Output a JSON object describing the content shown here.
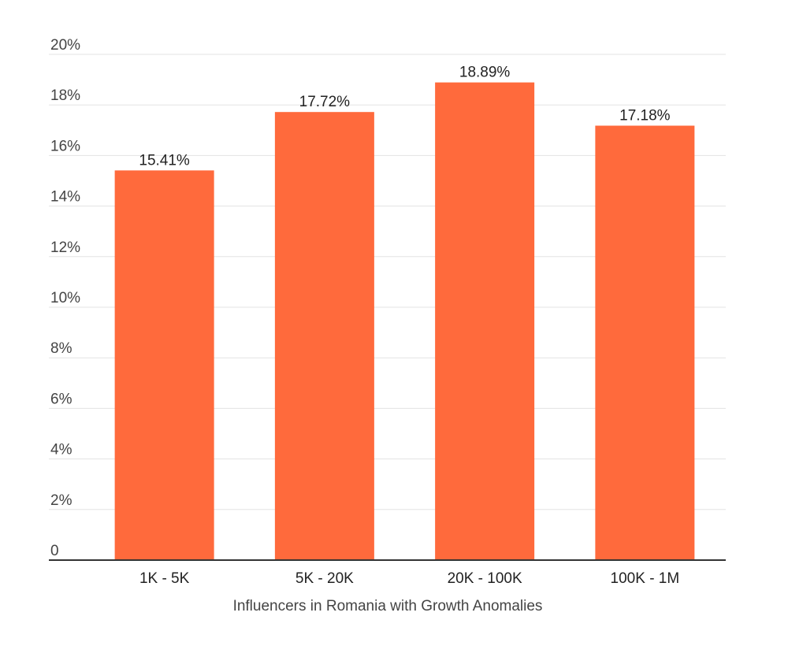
{
  "chart_data": {
    "type": "bar",
    "title": "",
    "xlabel": "Influencers in Romania with Growth Anomalies",
    "ylabel": "",
    "categories": [
      "1K - 5K",
      "5K - 20K",
      "20K - 100K",
      "100K - 1M"
    ],
    "values": [
      15.41,
      17.72,
      18.89,
      17.18
    ],
    "value_labels": [
      "15.41%",
      "17.72%",
      "18.89%",
      "17.18%"
    ],
    "ylim": [
      0,
      20
    ],
    "yticks": [
      0,
      2,
      4,
      6,
      8,
      10,
      12,
      14,
      16,
      18,
      20
    ],
    "ytick_labels": [
      "0",
      "2%",
      "4%",
      "6%",
      "8%",
      "10%",
      "12%",
      "14%",
      "16%",
      "18%",
      "20%"
    ],
    "grid": true,
    "legend": "none",
    "bar_color": "#ff6a3c"
  }
}
